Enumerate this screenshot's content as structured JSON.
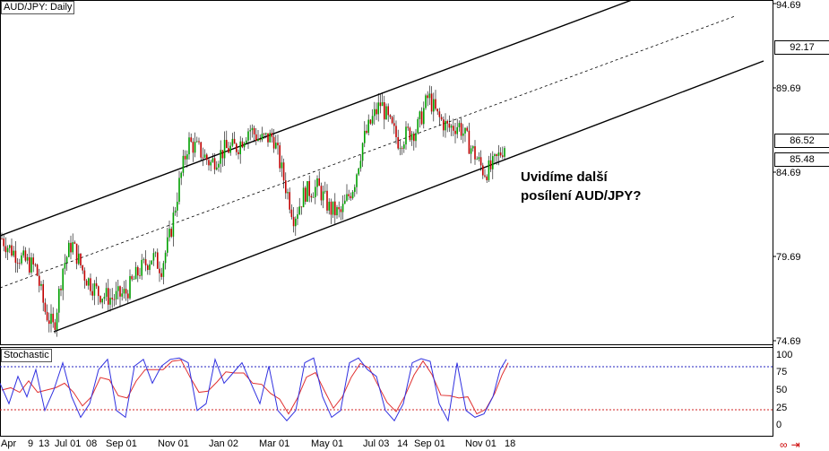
{
  "chart": {
    "title": "AUD/JPY: Daily",
    "indicator_title": "Stochastic",
    "annotation_line1": "Uvidíme další",
    "annotation_line2": "posílení AUD/JPY?",
    "price_axis": [
      "94.69",
      "89.69",
      "84.69",
      "79.69",
      "74.69"
    ],
    "price_boxes": [
      "92.17",
      "86.52",
      "85.48"
    ],
    "stoch_axis": [
      "100",
      "75",
      "50",
      "25",
      "0"
    ],
    "time_axis": [
      "Apr",
      "9",
      "13",
      "Jul 01",
      "08",
      "Sep 01",
      "Nov 01",
      "Jan 02",
      "Mar 01",
      "May 01",
      "Jul 03",
      "14",
      "Sep 01",
      "Nov 01",
      "18"
    ],
    "colors": {
      "bull": "#00a000",
      "bear": "#c00000",
      "channel": "#000000",
      "stoch_k": "#3030e0",
      "stoch_d": "#e03030",
      "level_hi": "#2020c0",
      "level_lo": "#d02020"
    },
    "icons": [
      "link-icon",
      "arrow-right-icon"
    ]
  },
  "chart_data": {
    "type": "candlestick",
    "symbol": "AUD/JPY",
    "timeframe": "Daily",
    "ylim": [
      73.5,
      95.5
    ],
    "price_path": [
      [
        0,
        80.9
      ],
      [
        10,
        80.2
      ],
      [
        25,
        79.5
      ],
      [
        40,
        79.0
      ],
      [
        50,
        76.5
      ],
      [
        60,
        75.4
      ],
      [
        70,
        79.0
      ],
      [
        80,
        80.5
      ],
      [
        95,
        78.5
      ],
      [
        110,
        77.5
      ],
      [
        125,
        77.2
      ],
      [
        140,
        77.5
      ],
      [
        155,
        78.8
      ],
      [
        170,
        79.7
      ],
      [
        180,
        79.0
      ],
      [
        190,
        81.0
      ],
      [
        200,
        84.0
      ],
      [
        210,
        86.5
      ],
      [
        222,
        86.0
      ],
      [
        235,
        85.2
      ],
      [
        250,
        86.0
      ],
      [
        265,
        86.2
      ],
      [
        278,
        87.3
      ],
      [
        290,
        86.6
      ],
      [
        305,
        86.8
      ],
      [
        318,
        84.0
      ],
      [
        328,
        82.0
      ],
      [
        340,
        83.5
      ],
      [
        355,
        83.8
      ],
      [
        368,
        82.5
      ],
      [
        380,
        82.2
      ],
      [
        395,
        84.0
      ],
      [
        405,
        86.5
      ],
      [
        415,
        87.8
      ],
      [
        425,
        88.8
      ],
      [
        435,
        87.5
      ],
      [
        445,
        86.5
      ],
      [
        455,
        87.0
      ],
      [
        465,
        87.2
      ],
      [
        478,
        89.2
      ],
      [
        488,
        88.0
      ],
      [
        500,
        87.3
      ],
      [
        512,
        87.5
      ],
      [
        522,
        86.5
      ],
      [
        532,
        85.5
      ],
      [
        540,
        84.7
      ],
      [
        548,
        84.9
      ],
      [
        556,
        85.6
      ],
      [
        565,
        86.5
      ]
    ],
    "stochastic": {
      "levels": [
        80,
        20
      ],
      "k": [
        [
          0,
          60
        ],
        [
          10,
          30
        ],
        [
          20,
          70
        ],
        [
          30,
          40
        ],
        [
          40,
          80
        ],
        [
          50,
          20
        ],
        [
          60,
          50
        ],
        [
          70,
          90
        ],
        [
          80,
          40
        ],
        [
          90,
          10
        ],
        [
          100,
          30
        ],
        [
          110,
          80
        ],
        [
          120,
          95
        ],
        [
          130,
          20
        ],
        [
          140,
          10
        ],
        [
          150,
          85
        ],
        [
          160,
          95
        ],
        [
          170,
          60
        ],
        [
          180,
          85
        ],
        [
          190,
          95
        ],
        [
          200,
          97
        ],
        [
          210,
          90
        ],
        [
          220,
          20
        ],
        [
          230,
          30
        ],
        [
          240,
          95
        ],
        [
          250,
          60
        ],
        [
          260,
          75
        ],
        [
          270,
          90
        ],
        [
          280,
          60
        ],
        [
          290,
          30
        ],
        [
          300,
          85
        ],
        [
          310,
          20
        ],
        [
          320,
          5
        ],
        [
          330,
          20
        ],
        [
          340,
          90
        ],
        [
          350,
          97
        ],
        [
          360,
          40
        ],
        [
          370,
          10
        ],
        [
          380,
          20
        ],
        [
          390,
          90
        ],
        [
          400,
          97
        ],
        [
          410,
          80
        ],
        [
          420,
          70
        ],
        [
          430,
          20
        ],
        [
          440,
          5
        ],
        [
          450,
          30
        ],
        [
          460,
          90
        ],
        [
          470,
          96
        ],
        [
          480,
          92
        ],
        [
          490,
          30
        ],
        [
          500,
          5
        ],
        [
          510,
          90
        ],
        [
          520,
          20
        ],
        [
          530,
          10
        ],
        [
          540,
          15
        ],
        [
          550,
          40
        ],
        [
          558,
          80
        ],
        [
          565,
          95
        ]
      ]
    }
  }
}
